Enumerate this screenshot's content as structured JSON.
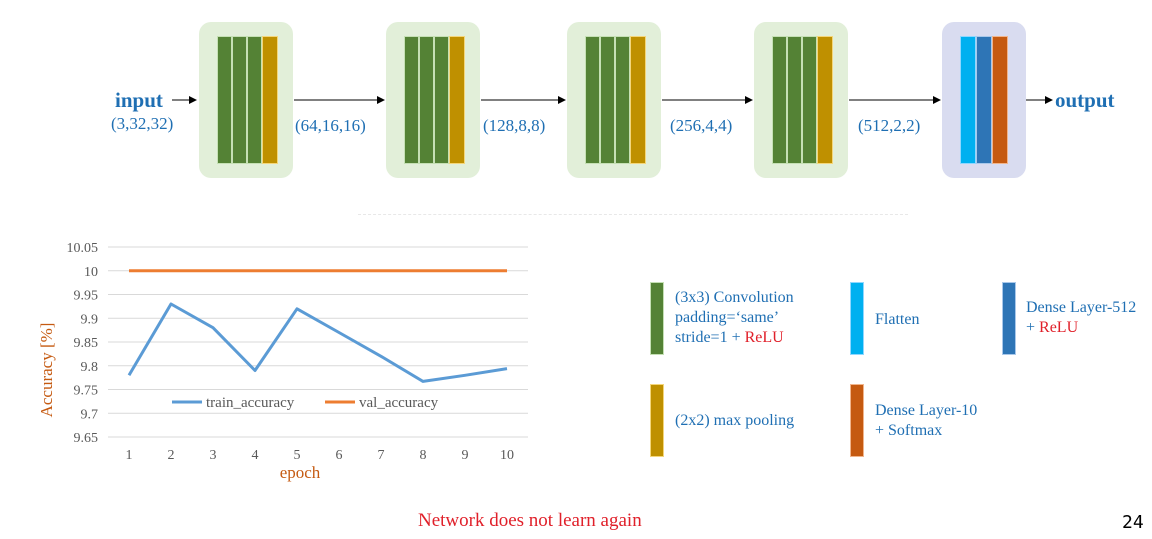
{
  "network": {
    "input_label": "input",
    "output_label": "output",
    "shapes": [
      "(3,32,32)",
      "(64,16,16)",
      "(128,8,8)",
      "(256,4,4)",
      "(512,2,2)"
    ]
  },
  "chart_data": {
    "type": "line",
    "xlabel": "epoch",
    "ylabel": "Accuracy [%]",
    "x": [
      1,
      2,
      3,
      4,
      5,
      6,
      7,
      8,
      9,
      10
    ],
    "ylim": [
      9.65,
      10.05
    ],
    "yticks": [
      "9.65",
      "9.7",
      "9.75",
      "9.8",
      "9.85",
      "9.9",
      "9.95",
      "10",
      "10.05"
    ],
    "ytick_values": [
      9.65,
      9.7,
      9.75,
      9.8,
      9.85,
      9.9,
      9.95,
      10.0,
      10.05
    ],
    "grid": true,
    "legend_position": "inside-lower-center",
    "series": [
      {
        "name": "train_accuracy",
        "color": "#5b9bd5",
        "values": [
          9.78,
          9.93,
          9.88,
          9.79,
          9.92,
          9.87,
          9.82,
          9.767,
          9.78,
          9.794
        ]
      },
      {
        "name": "val_accuracy",
        "color": "#ed7d31",
        "values": [
          10.0,
          10.0,
          10.0,
          10.0,
          10.0,
          10.0,
          10.0,
          10.0,
          10.0,
          10.0
        ]
      }
    ]
  },
  "legend": {
    "conv_line1": "(3x3) Convolution",
    "conv_line2": "padding=‘same’",
    "conv_line3a": "stride=1 + ",
    "conv_line3b": "ReLU",
    "pool": "(2x2) max pooling",
    "flatten": "Flatten",
    "dense512_line1": "Dense Layer-512",
    "dense512_line2a": "+ ",
    "dense512_line2b": "ReLU",
    "dense10_line1": "Dense Layer-10",
    "dense10_line2": "+ Softmax"
  },
  "colors": {
    "conv": "#548235",
    "pool": "#bf9000",
    "flatten": "#00b0f0",
    "dense512": "#2e75b6",
    "dense10": "#c55a11",
    "text_blue": "#1f6fb3",
    "highlight_red": "#e0202a"
  },
  "footer": "Network does not learn again",
  "page_number": "24"
}
